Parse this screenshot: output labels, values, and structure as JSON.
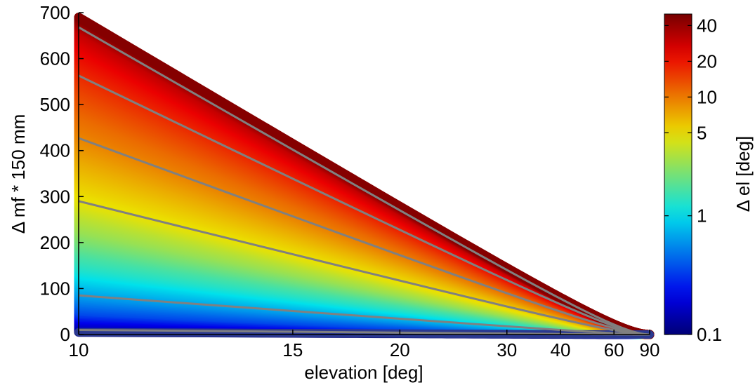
{
  "chart_data": {
    "type": "line",
    "xlabel": "elevation [deg]",
    "ylabel": "Δ mf * 150 mm",
    "x_scale": "reciprocal",
    "xlim": [
      10,
      90
    ],
    "ylim": [
      0,
      700
    ],
    "x_ticks": [
      10,
      15,
      20,
      30,
      40,
      60,
      90
    ],
    "y_ticks": [
      0,
      100,
      200,
      300,
      400,
      500,
      600,
      700
    ],
    "grid": false,
    "colorbar": {
      "label": "Δ el [deg]",
      "scale": "log",
      "range": [
        0.1,
        50
      ],
      "ticks": [
        0.1,
        1,
        5,
        10,
        20,
        40
      ]
    },
    "curve_model": "value = k × (1/sin(elevation) − 1); value at 10° listed per curve",
    "band": {
      "description": "colored band of curves, color = Δ el",
      "value_at_10deg": [
        5,
        50,
        85,
        120,
        150,
        180,
        205,
        230,
        260,
        290,
        330,
        380,
        430,
        480,
        530,
        580,
        625,
        665,
        690
      ],
      "delta_el": [
        0.1,
        0.35,
        0.6,
        0.9,
        1.3,
        1.7,
        2.2,
        2.8,
        3.5,
        4.5,
        5.5,
        7,
        9,
        11,
        14,
        18,
        23,
        30,
        45
      ]
    },
    "gray_curves": {
      "color": "#808080",
      "value_at_10deg": [
        10,
        85,
        290,
        427,
        563,
        668
      ]
    },
    "colors": {
      "colormap": "jet",
      "gray_line": "#808080",
      "bottom_line": "#2b3990"
    }
  }
}
